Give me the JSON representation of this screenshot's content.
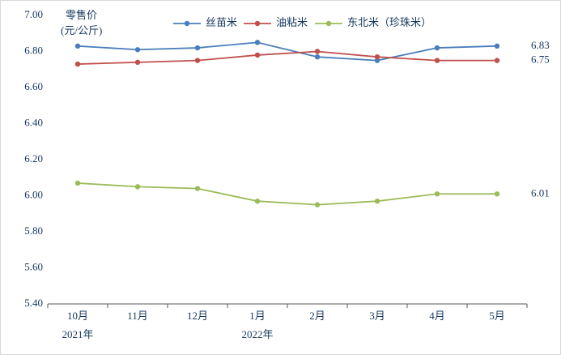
{
  "chart_data": {
    "type": "line",
    "title": "",
    "ylabel_lines": [
      "零售价",
      "(元/公斤)"
    ],
    "x": [
      "10月",
      "11月",
      "12月",
      "1月",
      "2月",
      "3月",
      "4月",
      "5月"
    ],
    "x_year_labels": [
      {
        "index": 0,
        "label": "2021年"
      },
      {
        "index": 3,
        "label": "2022年"
      }
    ],
    "ylim": [
      5.4,
      7.0
    ],
    "ytick_step": 0.2,
    "yticks": [
      "7.00",
      "6.80",
      "6.60",
      "6.40",
      "6.20",
      "6.00",
      "5.80",
      "5.60",
      "5.40"
    ],
    "grid": false,
    "legend_position": "top",
    "text_color": "#17375e",
    "axis_color": "#595959",
    "series": [
      {
        "name": "丝苗米",
        "color": "#4a7ebb",
        "values": [
          6.83,
          6.81,
          6.82,
          6.85,
          6.77,
          6.75,
          6.82,
          6.83
        ],
        "end_label": "6.83"
      },
      {
        "name": "油粘米",
        "color": "#c0504d",
        "values": [
          6.73,
          6.74,
          6.75,
          6.78,
          6.8,
          6.77,
          6.75,
          6.75
        ],
        "end_label": "6.75"
      },
      {
        "name": "东北米（珍珠米）",
        "color": "#9bbb59",
        "values": [
          6.07,
          6.05,
          6.04,
          5.97,
          5.95,
          5.97,
          6.01,
          6.01
        ],
        "end_label": "6.01"
      }
    ]
  }
}
